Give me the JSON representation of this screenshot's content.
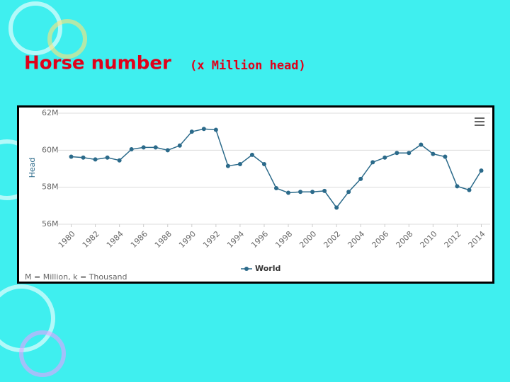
{
  "slide": {
    "title": "Horse number",
    "subtitle": "(x Million head)"
  },
  "chart_data": {
    "type": "line",
    "y_label": "Head",
    "note": "M = Million, k = Thousand",
    "x": [
      1980,
      1981,
      1982,
      1983,
      1984,
      1985,
      1986,
      1987,
      1988,
      1989,
      1990,
      1991,
      1992,
      1993,
      1994,
      1995,
      1996,
      1997,
      1998,
      1999,
      2000,
      2001,
      2002,
      2003,
      2004,
      2005,
      2006,
      2007,
      2008,
      2009,
      2010,
      2011,
      2012,
      2013,
      2014
    ],
    "series": [
      {
        "name": "World",
        "color": "#2b6a8a",
        "values": [
          59.65,
          59.6,
          59.5,
          59.6,
          59.45,
          60.05,
          60.15,
          60.15,
          60.0,
          60.25,
          61.0,
          61.15,
          61.1,
          59.15,
          59.25,
          59.75,
          59.25,
          57.95,
          57.7,
          57.75,
          57.75,
          57.8,
          56.9,
          57.75,
          58.45,
          59.35,
          59.6,
          59.85,
          59.85,
          60.3,
          59.8,
          59.65,
          58.05,
          57.85,
          58.9
        ]
      }
    ],
    "xlim": [
      1979.5,
      2014.5
    ],
    "xticks": [
      1980,
      1982,
      1984,
      1986,
      1988,
      1990,
      1992,
      1994,
      1996,
      1998,
      2000,
      2002,
      2004,
      2006,
      2008,
      2010,
      2012,
      2014
    ],
    "ylim": [
      56,
      62
    ],
    "yticks": [
      {
        "value": 56,
        "label": "56M"
      },
      {
        "value": 58,
        "label": "58M"
      },
      {
        "value": 60,
        "label": "60M"
      },
      {
        "value": 62,
        "label": "62M"
      }
    ],
    "grid": true
  }
}
